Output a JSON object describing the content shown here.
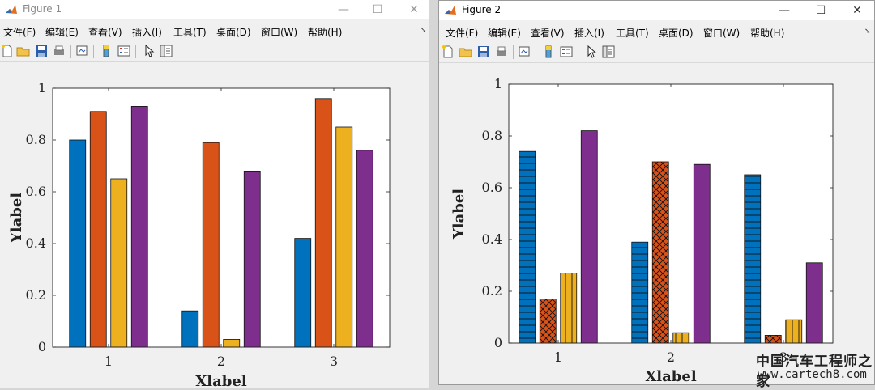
{
  "colors": {
    "blue": "#0072BD",
    "orange": "#D95319",
    "yellow": "#EDB120",
    "purple": "#7E2F8E"
  },
  "windows": [
    {
      "title": "Figure 1",
      "controls": {
        "minimize": "—",
        "maximize": "☐",
        "close": "✕"
      },
      "menu": [
        "文件(F)",
        "编辑(E)",
        "查看(V)",
        "插入(I)",
        "工具(T)",
        "桌面(D)",
        "窗口(W)",
        "帮助(H)"
      ],
      "toolbar_icons": [
        "new-file-icon",
        "open-folder-icon",
        "save-icon",
        "print-icon",
        "link-plot-icon",
        "colorbar-icon",
        "legend-icon",
        "pointer-icon",
        "property-inspector-icon"
      ]
    },
    {
      "title": "Figure 2",
      "controls": {
        "minimize": "—",
        "maximize": "☐",
        "close": "✕"
      },
      "menu": [
        "文件(F)",
        "编辑(E)",
        "查看(V)",
        "插入(I)",
        "工具(T)",
        "桌面(D)",
        "窗口(W)",
        "帮助(H)"
      ],
      "toolbar_icons": [
        "new-file-icon",
        "open-folder-icon",
        "save-icon",
        "print-icon",
        "link-plot-icon",
        "colorbar-icon",
        "legend-icon",
        "pointer-icon",
        "property-inspector-icon"
      ]
    }
  ],
  "chart_data": [
    {
      "type": "bar",
      "categories": [
        "1",
        "2",
        "3"
      ],
      "xlabel": "Xlabel",
      "ylabel": "Ylabel",
      "ylim": [
        0,
        1
      ],
      "yticks": [
        "0",
        "0.2",
        "0.4",
        "0.6",
        "0.8",
        "1"
      ],
      "grid": false,
      "series": [
        {
          "values": [
            0.8,
            0.14,
            0.42
          ],
          "color": "#0072BD",
          "hatch": "none"
        },
        {
          "values": [
            0.91,
            0.79,
            0.96
          ],
          "color": "#D95319",
          "hatch": "none"
        },
        {
          "values": [
            0.65,
            0.03,
            0.85
          ],
          "color": "#EDB120",
          "hatch": "none"
        },
        {
          "values": [
            0.93,
            0.68,
            0.76
          ],
          "color": "#7E2F8E",
          "hatch": "none"
        }
      ]
    },
    {
      "type": "bar",
      "categories": [
        "1",
        "2",
        "3"
      ],
      "xlabel": "Xlabel",
      "ylabel": "Ylabel",
      "ylim": [
        0,
        1
      ],
      "yticks": [
        "0",
        "0.2",
        "0.4",
        "0.6",
        "0.8",
        "1"
      ],
      "grid": false,
      "series": [
        {
          "values": [
            0.74,
            0.39,
            0.65
          ],
          "color": "#0072BD",
          "hatch": "horizontal"
        },
        {
          "values": [
            0.17,
            0.7,
            0.03
          ],
          "color": "#D95319",
          "hatch": "crosshatch"
        },
        {
          "values": [
            0.27,
            0.04,
            0.09
          ],
          "color": "#EDB120",
          "hatch": "vertical"
        },
        {
          "values": [
            0.82,
            0.69,
            0.31
          ],
          "color": "#7E2F8E",
          "hatch": "none"
        }
      ]
    }
  ],
  "watermark": {
    "text_cn": "中国汽车工程师之家",
    "url": "www.cartech8.com"
  }
}
